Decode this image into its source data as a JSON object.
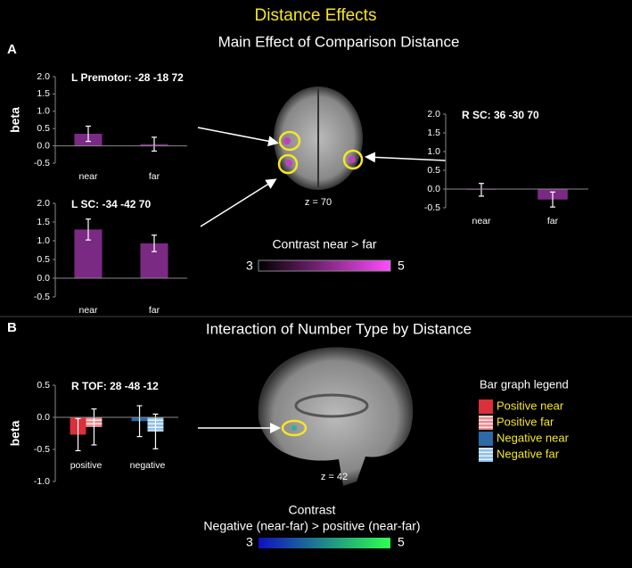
{
  "figure": {
    "title": "Distance Effects",
    "panel_a": "A",
    "panel_a_title": "Main Effect of Comparison Distance",
    "slice_a": "z = 70",
    "contrast_a": "Contrast near > far",
    "scale_a_min": "3",
    "scale_a_max": "5",
    "panel_b": "B",
    "panel_b_title": "Interaction of Number Type by Distance",
    "slice_b": "z = 42",
    "contrast_b_title": "Contrast",
    "contrast_b": "Negative (near-far) > positive (near-far)",
    "scale_b_min": "3",
    "scale_b_max": "5"
  },
  "chart_data": [
    {
      "type": "bar",
      "title": "L Premotor:  -28 -18 72",
      "y_label": "beta",
      "categories": [
        "near",
        "far"
      ],
      "values": [
        0.35,
        0.05
      ],
      "errors": [
        0.22,
        0.2
      ],
      "color": "#7b2a84",
      "ylim": [
        -0.5,
        2.0
      ],
      "yticks": [
        {
          "value": -0.5,
          "label": "-0.5"
        },
        {
          "value": 0,
          "label": "0.0"
        },
        {
          "value": 0.5,
          "label": "0.5"
        },
        {
          "value": 1,
          "label": "1.0"
        },
        {
          "value": 1.5,
          "label": "1.5"
        },
        {
          "value": 2,
          "label": "2.0"
        }
      ]
    },
    {
      "type": "bar",
      "title": "L SC: -34 -42 70",
      "categories": [
        "near",
        "far"
      ],
      "values": [
        1.3,
        0.93
      ],
      "errors": [
        0.28,
        0.22
      ],
      "color": "#7b2a84",
      "ylim": [
        -0.5,
        2.0
      ],
      "yticks": [
        {
          "value": -0.5,
          "label": "-0.5"
        },
        {
          "value": 0,
          "label": "0.0"
        },
        {
          "value": 0.5,
          "label": "0.5"
        },
        {
          "value": 1,
          "label": "1.0"
        },
        {
          "value": 1.5,
          "label": "1.5"
        },
        {
          "value": 2,
          "label": "2.0"
        }
      ]
    },
    {
      "type": "bar",
      "title": "R SC: 36 -30 70",
      "categories": [
        "near",
        "far"
      ],
      "values": [
        -0.02,
        -0.28
      ],
      "errors": [
        0.17,
        0.2
      ],
      "color": "#7b2a84",
      "ylim": [
        -0.5,
        2.0
      ],
      "yticks": [
        {
          "value": -0.5,
          "label": "-0.5"
        },
        {
          "value": 0,
          "label": "0.0"
        },
        {
          "value": 0.5,
          "label": "0.5"
        },
        {
          "value": 1,
          "label": "1.0"
        },
        {
          "value": 1.5,
          "label": "1.5"
        },
        {
          "value": 2,
          "label": "2.0"
        }
      ]
    },
    {
      "type": "grouped_bar",
      "title": "R TOF: 28 -48 -12",
      "y_label": "beta",
      "legend_title": "Bar graph legend",
      "categories": [
        "positive",
        "negative"
      ],
      "series": [
        {
          "name": "Positive near",
          "color": "#d9303a",
          "hatch": false,
          "values": [
            -0.27,
            null
          ],
          "errors": [
            0.25,
            null
          ]
        },
        {
          "name": "Positive far",
          "color": "#f08a8f",
          "hatch": true,
          "values": [
            -0.15,
            null
          ],
          "errors": [
            0.28,
            null
          ]
        },
        {
          "name": "Negative near",
          "color": "#2d6aa6",
          "hatch": false,
          "values": [
            null,
            -0.06
          ],
          "errors": [
            null,
            0.24
          ]
        },
        {
          "name": "Negative far",
          "color": "#8ec0e8",
          "hatch": true,
          "values": [
            null,
            -0.22
          ],
          "errors": [
            null,
            0.27
          ]
        }
      ],
      "ylim": [
        -1.0,
        0.5
      ],
      "yticks": [
        {
          "value": -1,
          "label": "-1.0"
        },
        {
          "value": -0.5,
          "label": "-0.5"
        },
        {
          "value": 0,
          "label": "0.0"
        },
        {
          "value": 0.5,
          "label": "0.5"
        }
      ]
    }
  ]
}
